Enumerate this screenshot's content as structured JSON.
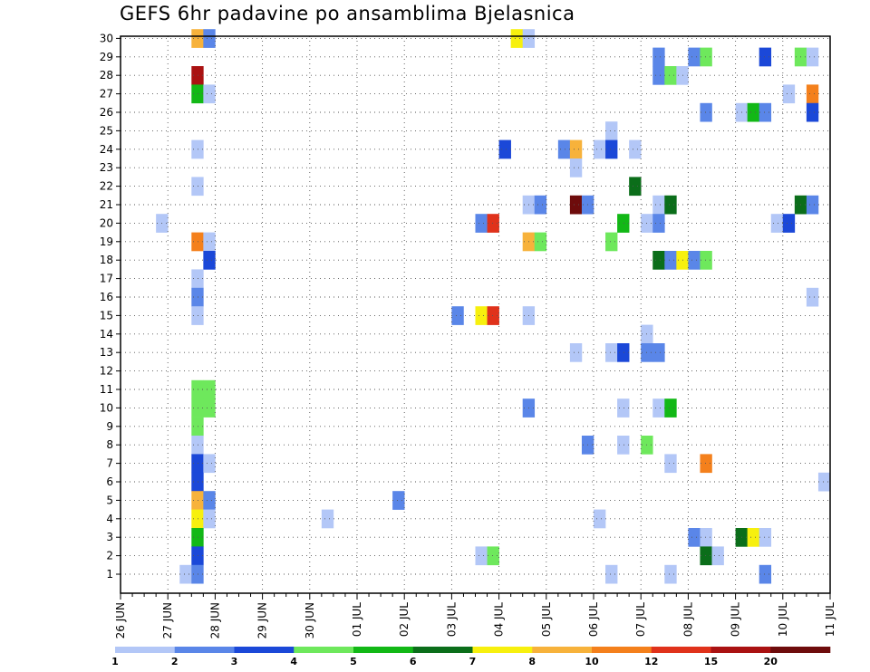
{
  "chart_data": {
    "type": "heatmap",
    "title": "GEFS 6hr padavine po ansamblima Bjelasnica",
    "xlabel": "",
    "ylabel": "",
    "x_tick_labels": [
      "26 JUN",
      "27 JUN",
      "28 JUN",
      "29 JUN",
      "30 JUN",
      "01 JUL",
      "02 JUL",
      "03 JUL",
      "04 JUL",
      "05 JUL",
      "06 JUL",
      "07 JUL",
      "08 JUL",
      "09 JUL",
      "10 JUL",
      "11 JUL"
    ],
    "y_tick_labels": [
      "1",
      "2",
      "3",
      "4",
      "5",
      "6",
      "7",
      "8",
      "9",
      "10",
      "11",
      "12",
      "13",
      "14",
      "15",
      "16",
      "17",
      "18",
      "19",
      "20",
      "21",
      "22",
      "23",
      "24",
      "25",
      "26",
      "27",
      "28",
      "29",
      "30"
    ],
    "time_step_hours": 6,
    "grid": true,
    "colorbar": {
      "position": "bottom",
      "labels": [
        "1",
        "2",
        "3",
        "4",
        "5",
        "6",
        "7",
        "8",
        "10",
        "12",
        "15",
        "20"
      ],
      "colors": [
        "#b3c7f7",
        "#5a86e8",
        "#1b48d8",
        "#6ee85c",
        "#12b816",
        "#0b6e1a",
        "#f7f00e",
        "#f7b23b",
        "#f4801c",
        "#e0321b",
        "#aa1212",
        "#6e0c0c"
      ]
    },
    "cells": [
      {
        "member": 30,
        "step": 7,
        "level": 8
      },
      {
        "member": 30,
        "step": 8,
        "level": 2
      },
      {
        "member": 30,
        "step": 34,
        "level": 7
      },
      {
        "member": 30,
        "step": 35,
        "level": 1
      },
      {
        "member": 29,
        "step": 46,
        "level": 2
      },
      {
        "member": 29,
        "step": 49,
        "level": 2
      },
      {
        "member": 29,
        "step": 50,
        "level": 4
      },
      {
        "member": 29,
        "step": 55,
        "level": 3
      },
      {
        "member": 29,
        "step": 58,
        "level": 4
      },
      {
        "member": 29,
        "step": 59,
        "level": 1
      },
      {
        "member": 28,
        "step": 7,
        "level": 11
      },
      {
        "member": 28,
        "step": 46,
        "level": 2
      },
      {
        "member": 28,
        "step": 47,
        "level": 4
      },
      {
        "member": 28,
        "step": 48,
        "level": 1
      },
      {
        "member": 27,
        "step": 7,
        "level": 5
      },
      {
        "member": 27,
        "step": 8,
        "level": 1
      },
      {
        "member": 27,
        "step": 57,
        "level": 1
      },
      {
        "member": 27,
        "step": 59,
        "level": 9
      },
      {
        "member": 26,
        "step": 50,
        "level": 2
      },
      {
        "member": 26,
        "step": 53,
        "level": 1
      },
      {
        "member": 26,
        "step": 54,
        "level": 5
      },
      {
        "member": 26,
        "step": 55,
        "level": 2
      },
      {
        "member": 26,
        "step": 59,
        "level": 3
      },
      {
        "member": 25,
        "step": 42,
        "level": 1
      },
      {
        "member": 24,
        "step": 7,
        "level": 1
      },
      {
        "member": 24,
        "step": 33,
        "level": 3
      },
      {
        "member": 24,
        "step": 38,
        "level": 2
      },
      {
        "member": 24,
        "step": 39,
        "level": 8
      },
      {
        "member": 24,
        "step": 41,
        "level": 1
      },
      {
        "member": 24,
        "step": 42,
        "level": 3
      },
      {
        "member": 24,
        "step": 44,
        "level": 1
      },
      {
        "member": 23,
        "step": 39,
        "level": 1
      },
      {
        "member": 22,
        "step": 7,
        "level": 1
      },
      {
        "member": 22,
        "step": 44,
        "level": 6
      },
      {
        "member": 21,
        "step": 35,
        "level": 1
      },
      {
        "member": 21,
        "step": 36,
        "level": 2
      },
      {
        "member": 21,
        "step": 39,
        "level": 12
      },
      {
        "member": 21,
        "step": 40,
        "level": 2
      },
      {
        "member": 21,
        "step": 46,
        "level": 1
      },
      {
        "member": 21,
        "step": 47,
        "level": 6
      },
      {
        "member": 21,
        "step": 58,
        "level": 6
      },
      {
        "member": 21,
        "step": 59,
        "level": 2
      },
      {
        "member": 20,
        "step": 4,
        "level": 1
      },
      {
        "member": 20,
        "step": 31,
        "level": 2
      },
      {
        "member": 20,
        "step": 32,
        "level": 10
      },
      {
        "member": 20,
        "step": 43,
        "level": 5
      },
      {
        "member": 20,
        "step": 45,
        "level": 1
      },
      {
        "member": 20,
        "step": 46,
        "level": 2
      },
      {
        "member": 20,
        "step": 56,
        "level": 1
      },
      {
        "member": 20,
        "step": 57,
        "level": 3
      },
      {
        "member": 19,
        "step": 7,
        "level": 9
      },
      {
        "member": 19,
        "step": 8,
        "level": 1
      },
      {
        "member": 19,
        "step": 35,
        "level": 8
      },
      {
        "member": 19,
        "step": 36,
        "level": 4
      },
      {
        "member": 19,
        "step": 42,
        "level": 4
      },
      {
        "member": 18,
        "step": 8,
        "level": 3
      },
      {
        "member": 18,
        "step": 46,
        "level": 6
      },
      {
        "member": 18,
        "step": 47,
        "level": 2
      },
      {
        "member": 18,
        "step": 48,
        "level": 7
      },
      {
        "member": 18,
        "step": 49,
        "level": 2
      },
      {
        "member": 18,
        "step": 50,
        "level": 4
      },
      {
        "member": 17,
        "step": 7,
        "level": 1
      },
      {
        "member": 16,
        "step": 7,
        "level": 2
      },
      {
        "member": 16,
        "step": 59,
        "level": 1
      },
      {
        "member": 15,
        "step": 7,
        "level": 1
      },
      {
        "member": 15,
        "step": 29,
        "level": 2
      },
      {
        "member": 15,
        "step": 31,
        "level": 7
      },
      {
        "member": 15,
        "step": 32,
        "level": 10
      },
      {
        "member": 15,
        "step": 35,
        "level": 1
      },
      {
        "member": 14,
        "step": 45,
        "level": 1
      },
      {
        "member": 13,
        "step": 39,
        "level": 1
      },
      {
        "member": 13,
        "step": 42,
        "level": 1
      },
      {
        "member": 13,
        "step": 43,
        "level": 3
      },
      {
        "member": 13,
        "step": 45,
        "level": 2
      },
      {
        "member": 13,
        "step": 46,
        "level": 2
      },
      {
        "member": 11,
        "step": 7,
        "level": 4
      },
      {
        "member": 11,
        "step": 8,
        "level": 4
      },
      {
        "member": 10,
        "step": 7,
        "level": 4
      },
      {
        "member": 10,
        "step": 8,
        "level": 4
      },
      {
        "member": 10,
        "step": 35,
        "level": 2
      },
      {
        "member": 10,
        "step": 43,
        "level": 1
      },
      {
        "member": 10,
        "step": 46,
        "level": 1
      },
      {
        "member": 10,
        "step": 47,
        "level": 5
      },
      {
        "member": 9,
        "step": 7,
        "level": 4
      },
      {
        "member": 8,
        "step": 7,
        "level": 1
      },
      {
        "member": 8,
        "step": 40,
        "level": 2
      },
      {
        "member": 8,
        "step": 43,
        "level": 1
      },
      {
        "member": 8,
        "step": 45,
        "level": 4
      },
      {
        "member": 7,
        "step": 7,
        "level": 3
      },
      {
        "member": 7,
        "step": 8,
        "level": 1
      },
      {
        "member": 7,
        "step": 47,
        "level": 1
      },
      {
        "member": 7,
        "step": 50,
        "level": 9
      },
      {
        "member": 6,
        "step": 7,
        "level": 3
      },
      {
        "member": 6,
        "step": 60,
        "level": 1
      },
      {
        "member": 5,
        "step": 7,
        "level": 8
      },
      {
        "member": 5,
        "step": 8,
        "level": 2
      },
      {
        "member": 5,
        "step": 24,
        "level": 2
      },
      {
        "member": 4,
        "step": 7,
        "level": 7
      },
      {
        "member": 4,
        "step": 8,
        "level": 1
      },
      {
        "member": 4,
        "step": 18,
        "level": 1
      },
      {
        "member": 4,
        "step": 41,
        "level": 1
      },
      {
        "member": 3,
        "step": 7,
        "level": 5
      },
      {
        "member": 3,
        "step": 49,
        "level": 2
      },
      {
        "member": 3,
        "step": 50,
        "level": 1
      },
      {
        "member": 3,
        "step": 53,
        "level": 6
      },
      {
        "member": 3,
        "step": 54,
        "level": 7
      },
      {
        "member": 3,
        "step": 55,
        "level": 1
      },
      {
        "member": 2,
        "step": 7,
        "level": 3
      },
      {
        "member": 2,
        "step": 31,
        "level": 1
      },
      {
        "member": 2,
        "step": 32,
        "level": 4
      },
      {
        "member": 2,
        "step": 50,
        "level": 6
      },
      {
        "member": 2,
        "step": 51,
        "level": 1
      },
      {
        "member": 1,
        "step": 6,
        "level": 1
      },
      {
        "member": 1,
        "step": 7,
        "level": 2
      },
      {
        "member": 1,
        "step": 42,
        "level": 1
      },
      {
        "member": 1,
        "step": 47,
        "level": 1
      },
      {
        "member": 1,
        "step": 55,
        "level": 2
      }
    ]
  }
}
